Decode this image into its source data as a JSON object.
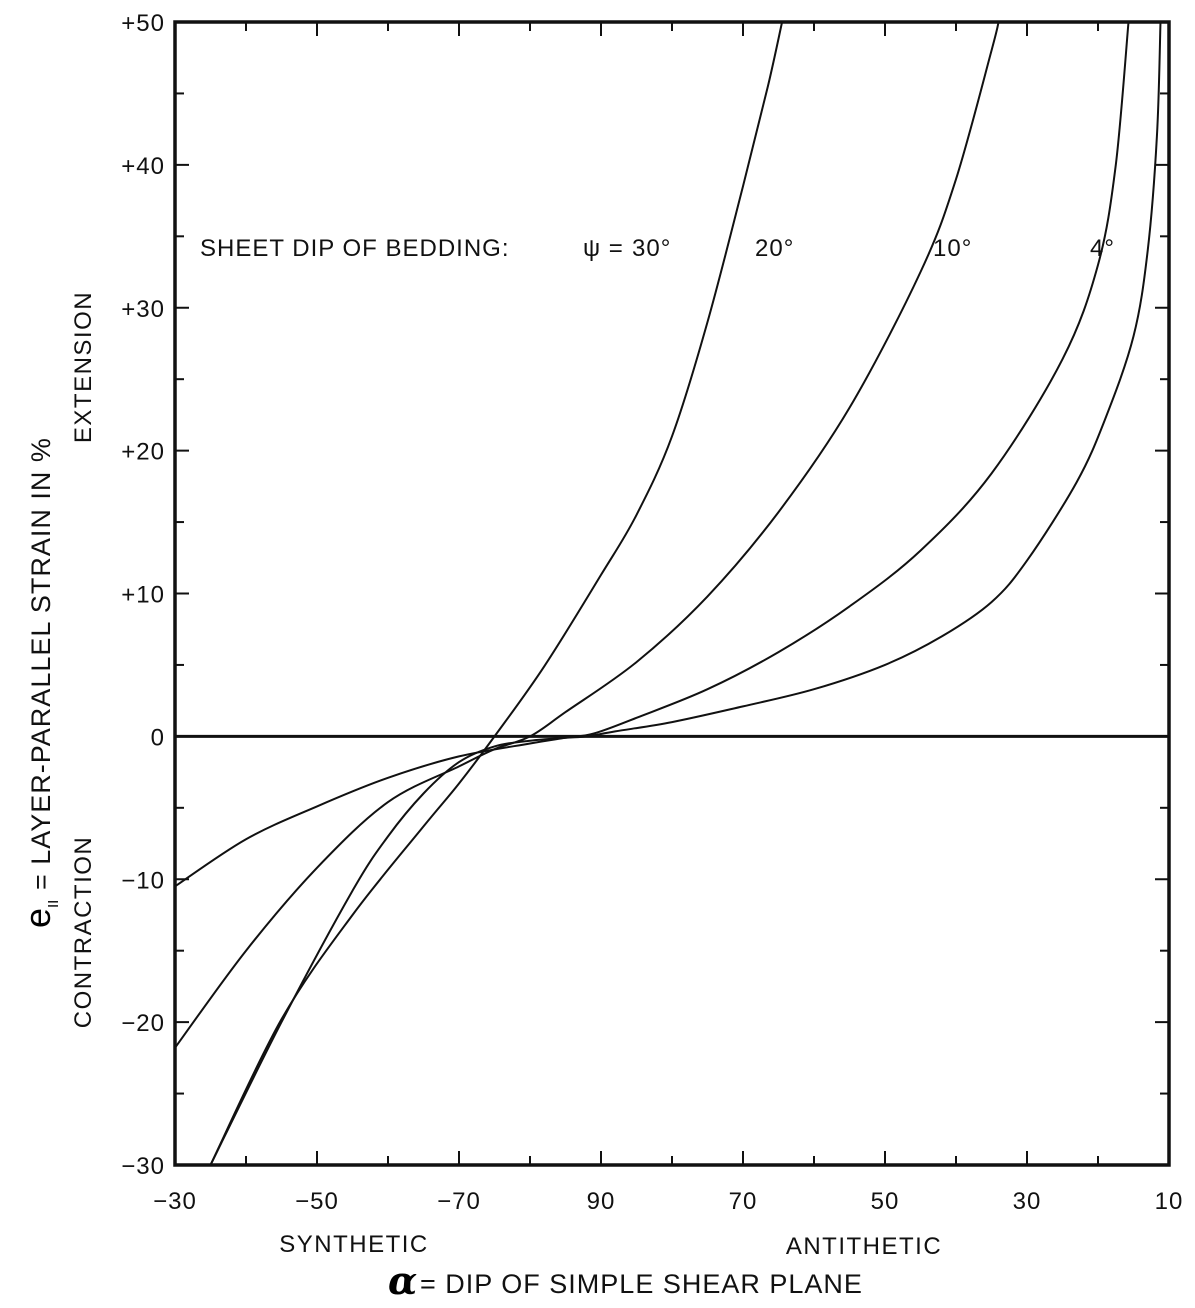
{
  "chart_data": {
    "type": "line",
    "title": "",
    "xlabel": "= DIP OF SIMPLE SHEAR PLANE",
    "xlabel_symbol": "α",
    "x_sublabels": {
      "left": "SYNTHETIC",
      "right": "ANTITHETIC"
    },
    "ylabel": "= LAYER-PARALLEL STRAIN IN %",
    "ylabel_symbol": "e",
    "ylabel_subscript": "II",
    "y_sublabels": {
      "upper": "EXTENSION",
      "lower": "CONTRACTION"
    },
    "x_domain_note": "dip runs from -30 through -90/90 to 10; internal position p in degrees, p=0 at -30, p=60 at -90/90, p=140 at 10",
    "x_ticks": [
      {
        "p": 0,
        "label": "−30"
      },
      {
        "p": 20,
        "label": "−50"
      },
      {
        "p": 40,
        "label": "−70"
      },
      {
        "p": 60,
        "label": "90"
      },
      {
        "p": 80,
        "label": "70"
      },
      {
        "p": 100,
        "label": "50"
      },
      {
        "p": 120,
        "label": "30"
      },
      {
        "p": 140,
        "label": "10"
      }
    ],
    "ylim": [
      -30,
      50
    ],
    "y_ticks": [
      {
        "v": 50,
        "label": "+50"
      },
      {
        "v": 40,
        "label": "+40"
      },
      {
        "v": 30,
        "label": "+30"
      },
      {
        "v": 20,
        "label": "+20"
      },
      {
        "v": 10,
        "label": "+10"
      },
      {
        "v": 0,
        "label": "0"
      },
      {
        "v": -10,
        "label": "−10"
      },
      {
        "v": -20,
        "label": "−20"
      },
      {
        "v": -30,
        "label": "−30"
      }
    ],
    "legend_prefix": "SHEET DIP OF BEDDING:",
    "legend_symbol": "ψ =",
    "series": [
      {
        "name": "30°",
        "points": [
          [
            5,
            -30
          ],
          [
            15,
            -19.8
          ],
          [
            25,
            -12.5
          ],
          [
            35,
            -6.3
          ],
          [
            40,
            -3.3
          ],
          [
            45,
            0
          ],
          [
            52,
            4.9
          ],
          [
            60,
            11.3
          ],
          [
            65,
            15.5
          ],
          [
            70,
            21
          ],
          [
            75,
            29
          ],
          [
            80,
            38.5
          ],
          [
            83.5,
            45.5
          ],
          [
            85.5,
            50
          ]
        ]
      },
      {
        "name": "20°",
        "points": [
          [
            0,
            -21.8
          ],
          [
            10,
            -15
          ],
          [
            20,
            -9.2
          ],
          [
            30,
            -4.6
          ],
          [
            40,
            -2.1
          ],
          [
            45,
            -0.9
          ],
          [
            50,
            0
          ],
          [
            55,
            1.7
          ],
          [
            65,
            5.2
          ],
          [
            75,
            9.8
          ],
          [
            85,
            15.7
          ],
          [
            95,
            23
          ],
          [
            105,
            32.5
          ],
          [
            110,
            39
          ],
          [
            115,
            48
          ],
          [
            116,
            50
          ]
        ]
      },
      {
        "name": "10°",
        "points": [
          [
            0,
            -10.5
          ],
          [
            10,
            -7.2
          ],
          [
            20,
            -4.9
          ],
          [
            30,
            -2.9
          ],
          [
            40,
            -1.4
          ],
          [
            50,
            -0.5
          ],
          [
            55,
            -0.1
          ],
          [
            59,
            0.2
          ],
          [
            65,
            1.3
          ],
          [
            75,
            3.3
          ],
          [
            85,
            5.9
          ],
          [
            95,
            9.1
          ],
          [
            105,
            13
          ],
          [
            115,
            18.4
          ],
          [
            125,
            26.4
          ],
          [
            130,
            33
          ],
          [
            132.5,
            40
          ],
          [
            134.3,
            50
          ]
        ]
      },
      {
        "name": "4°",
        "points": [
          [
            5,
            -30
          ],
          [
            15,
            -20
          ],
          [
            25,
            -10.8
          ],
          [
            30,
            -7
          ],
          [
            35,
            -4
          ],
          [
            40,
            -1.8
          ],
          [
            45,
            -0.7
          ],
          [
            50,
            -0.3
          ],
          [
            55,
            -0.1
          ],
          [
            58,
            0
          ],
          [
            62,
            0.35
          ],
          [
            70,
            1
          ],
          [
            80,
            2.1
          ],
          [
            90,
            3.3
          ],
          [
            100,
            5
          ],
          [
            108,
            7
          ],
          [
            115,
            9.4
          ],
          [
            120,
            12.3
          ],
          [
            127,
            17.8
          ],
          [
            131,
            22.2
          ],
          [
            135,
            28
          ],
          [
            137,
            34
          ],
          [
            138.3,
            42
          ],
          [
            138.8,
            50
          ]
        ]
      }
    ]
  }
}
